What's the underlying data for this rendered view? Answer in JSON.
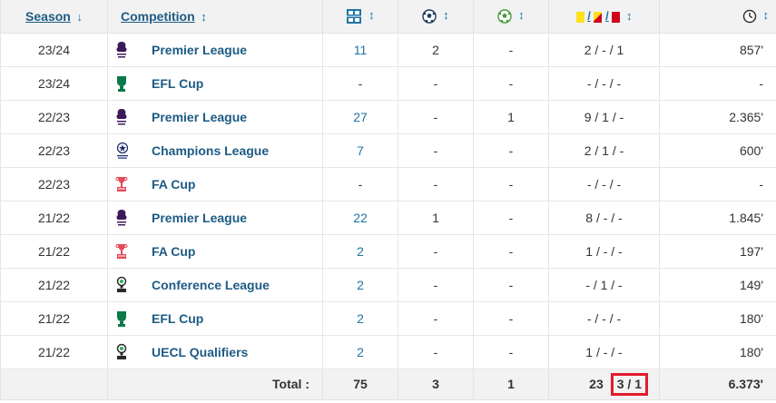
{
  "header": {
    "season_label": "Season",
    "season_arrow": "↓",
    "competition_label": "Competition",
    "sort_arrow": "↕",
    "icons": {
      "appearances": "appearances-icon",
      "goals": "football-icon",
      "assists": "assist-icon",
      "cards": "yellow-yellowred-red-cards-icon",
      "minutes": "clock-icon"
    },
    "cards_separator": "/"
  },
  "rows": [
    {
      "season": "23/24",
      "competition": "Premier League",
      "logo": "premier-league-logo",
      "apps": "11",
      "goals": "2",
      "assists": "-",
      "cards": "2 / - / 1",
      "minutes": "857'"
    },
    {
      "season": "23/24",
      "competition": "EFL Cup",
      "logo": "efl-cup-logo",
      "apps": "-",
      "goals": "-",
      "assists": "-",
      "cards": "- / - / -",
      "minutes": "-"
    },
    {
      "season": "22/23",
      "competition": "Premier League",
      "logo": "premier-league-logo",
      "apps": "27",
      "goals": "-",
      "assists": "1",
      "cards": "9 / 1 / -",
      "minutes": "2.365'"
    },
    {
      "season": "22/23",
      "competition": "Champions League",
      "logo": "champions-league-logo",
      "apps": "7",
      "goals": "-",
      "assists": "-",
      "cards": "2 / 1 / -",
      "minutes": "600'"
    },
    {
      "season": "22/23",
      "competition": "FA Cup",
      "logo": "fa-cup-logo",
      "apps": "-",
      "goals": "-",
      "assists": "-",
      "cards": "- / - / -",
      "minutes": "-"
    },
    {
      "season": "21/22",
      "competition": "Premier League",
      "logo": "premier-league-logo",
      "apps": "22",
      "goals": "1",
      "assists": "-",
      "cards": "8 / - / -",
      "minutes": "1.845'"
    },
    {
      "season": "21/22",
      "competition": "FA Cup",
      "logo": "fa-cup-logo",
      "apps": "2",
      "goals": "-",
      "assists": "-",
      "cards": "1 / - / -",
      "minutes": "197'"
    },
    {
      "season": "21/22",
      "competition": "Conference League",
      "logo": "conference-league-logo",
      "apps": "2",
      "goals": "-",
      "assists": "-",
      "cards": "- / 1 / -",
      "minutes": "149'"
    },
    {
      "season": "21/22",
      "competition": "EFL Cup",
      "logo": "efl-cup-logo",
      "apps": "2",
      "goals": "-",
      "assists": "-",
      "cards": "- / - / -",
      "minutes": "180'"
    },
    {
      "season": "21/22",
      "competition": "UECL Qualifiers",
      "logo": "conference-league-logo",
      "apps": "2",
      "goals": "-",
      "assists": "-",
      "cards": "1 / - / -",
      "minutes": "180'"
    }
  ],
  "totals": {
    "label": "Total :",
    "apps": "75",
    "goals": "3",
    "assists": "1",
    "yellow": "23",
    "rest": "3 / 1",
    "minutes": "6.373'"
  },
  "colors": {
    "link": "#1d75a3",
    "competition_text": "#1d5b84",
    "header_bg": "#f2f2f2",
    "highlight_border": "#e21b2b",
    "yellow_card": "#ffe11a",
    "red_card": "#d0021b",
    "efl_green": "#0b7a4a",
    "pl_purple": "#3d195b"
  }
}
